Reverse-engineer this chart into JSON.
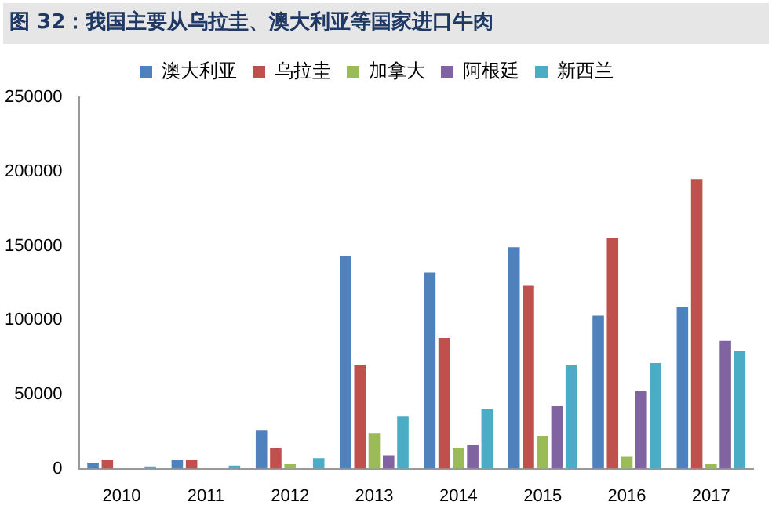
{
  "chart_data": {
    "type": "bar",
    "title": "图 32：我国主要从乌拉圭、澳大利亚等国家进口牛肉",
    "categories": [
      "2010",
      "2011",
      "2012",
      "2013",
      "2014",
      "2015",
      "2016",
      "2017"
    ],
    "series": [
      {
        "name": "澳大利亚",
        "color": "#4f81bd",
        "values": [
          4000,
          6000,
          26000,
          143000,
          132000,
          149000,
          103000,
          109000
        ]
      },
      {
        "name": "乌拉圭",
        "color": "#c0504d",
        "values": [
          6000,
          6000,
          14000,
          70000,
          88000,
          123000,
          155000,
          195000
        ]
      },
      {
        "name": "加拿大",
        "color": "#9bbb59",
        "values": [
          0,
          0,
          3000,
          24000,
          14000,
          22000,
          8000,
          3000
        ]
      },
      {
        "name": "阿根廷",
        "color": "#8064a2",
        "values": [
          0,
          0,
          0,
          9000,
          16000,
          42000,
          52000,
          86000
        ]
      },
      {
        "name": "新西兰",
        "color": "#4bacc6",
        "values": [
          1500,
          2000,
          7000,
          35000,
          40000,
          70000,
          71000,
          79000
        ]
      }
    ],
    "ylim": [
      0,
      250000
    ],
    "yticks": [
      0,
      50000,
      100000,
      150000,
      200000,
      250000
    ],
    "grid": false,
    "legend": "top"
  }
}
